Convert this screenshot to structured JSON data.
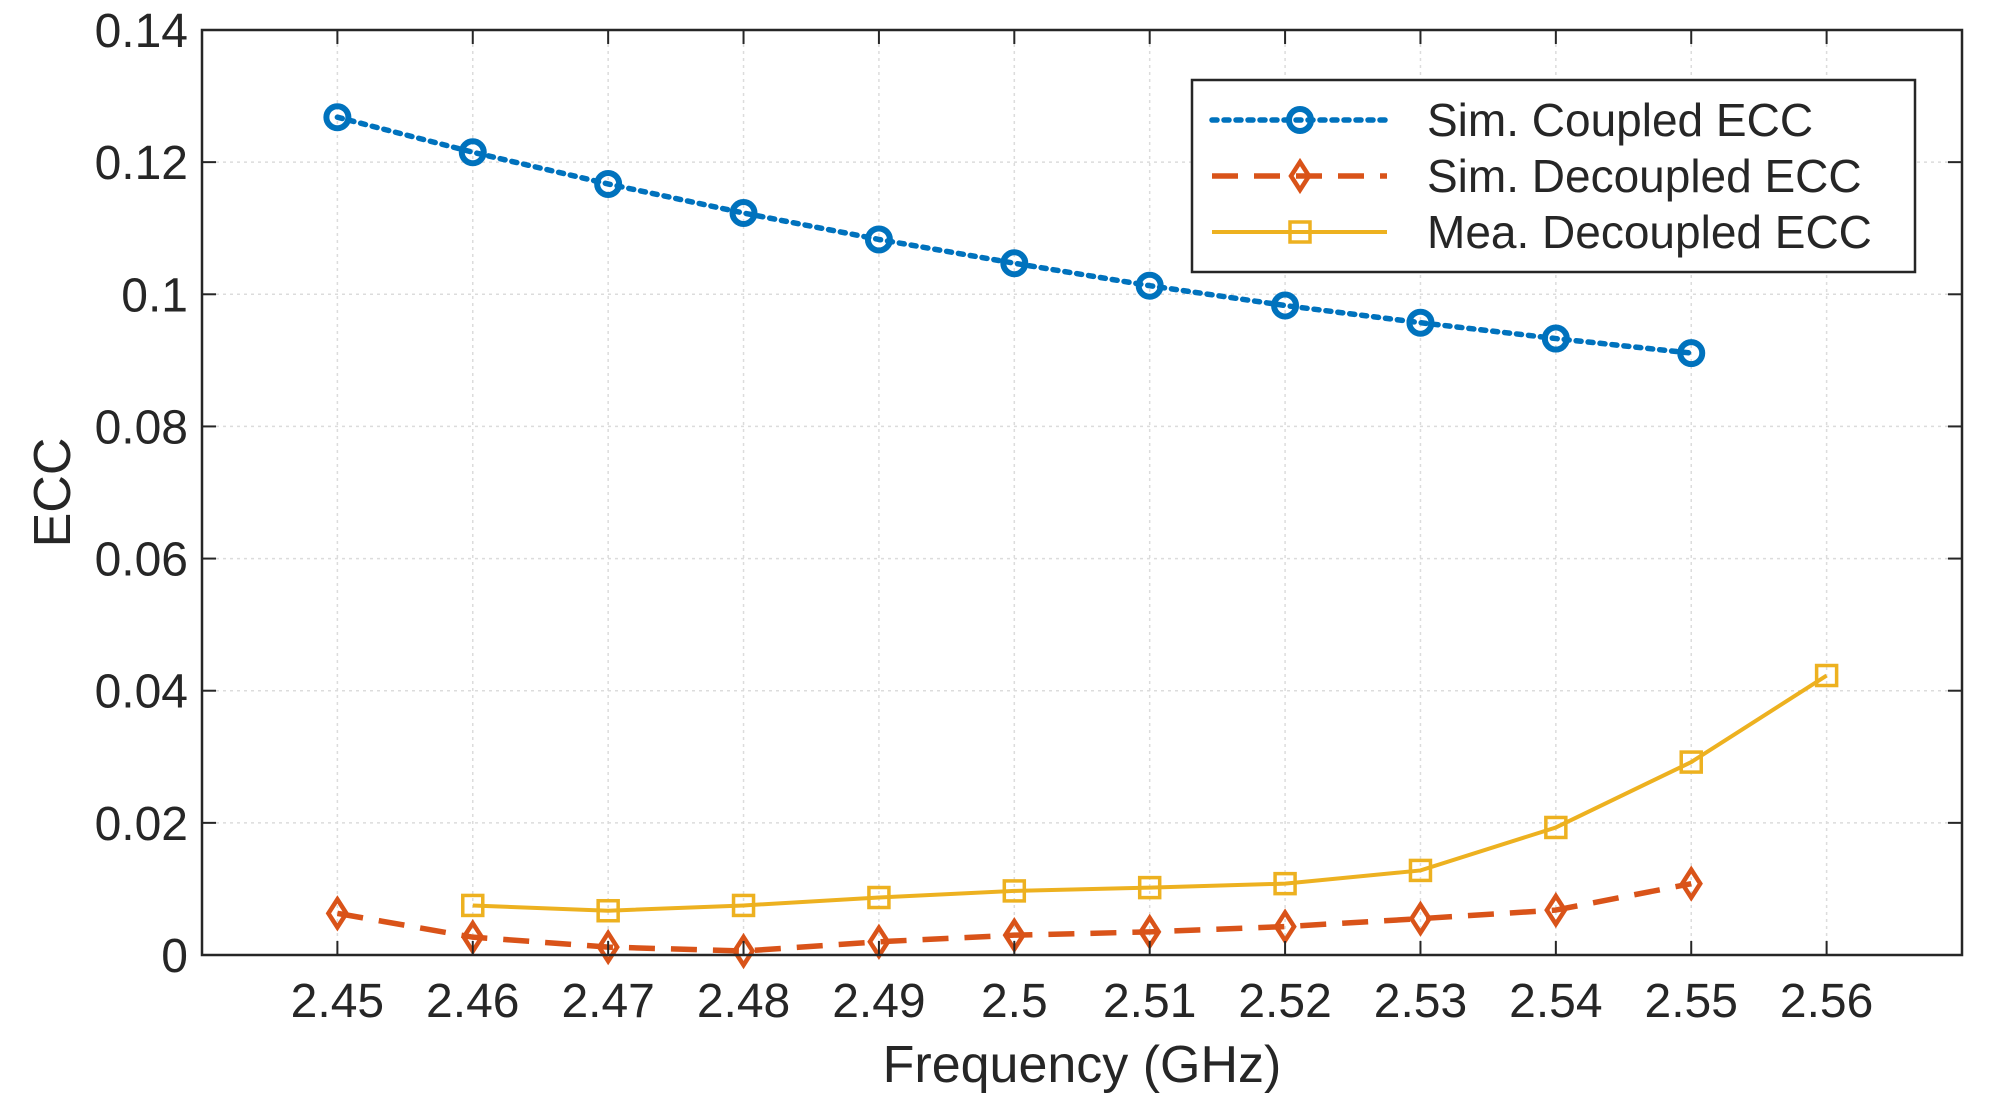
{
  "chart_data": {
    "type": "line",
    "xlabel": "Frequency (GHz)",
    "ylabel": "ECC",
    "xlim": [
      2.44,
      2.57
    ],
    "ylim": [
      0,
      0.14
    ],
    "xticks": [
      2.45,
      2.46,
      2.47,
      2.48,
      2.49,
      2.5,
      2.51,
      2.52,
      2.53,
      2.54,
      2.55,
      2.56
    ],
    "xtick_labels": [
      "2.45",
      "2.46",
      "2.47",
      "2.48",
      "2.49",
      "2.5",
      "2.51",
      "2.52",
      "2.53",
      "2.54",
      "2.55",
      "2.56"
    ],
    "yticks": [
      0,
      0.02,
      0.04,
      0.06,
      0.08,
      0.1,
      0.12,
      0.14
    ],
    "ytick_labels": [
      "0",
      "0.02",
      "0.04",
      "0.06",
      "0.08",
      "0.1",
      "0.12",
      "0.14"
    ],
    "grid": true,
    "legend_position": "top-right",
    "series": [
      {
        "name": "Sim. Coupled ECC",
        "color": "#0072BD",
        "line_style": "dotted",
        "marker": "circle",
        "x": [
          2.45,
          2.46,
          2.47,
          2.48,
          2.49,
          2.5,
          2.51,
          2.52,
          2.53,
          2.54,
          2.55
        ],
        "values": [
          0.1268,
          0.1215,
          0.1167,
          0.1123,
          0.1083,
          0.1047,
          0.1013,
          0.0983,
          0.0957,
          0.0933,
          0.0911
        ]
      },
      {
        "name": "Sim. Decoupled ECC",
        "color": "#D95319",
        "line_style": "dashed",
        "marker": "diamond",
        "x": [
          2.45,
          2.46,
          2.47,
          2.48,
          2.49,
          2.5,
          2.51,
          2.52,
          2.53,
          2.54,
          2.55
        ],
        "values": [
          0.0063,
          0.0027,
          0.0012,
          0.0006,
          0.002,
          0.003,
          0.0035,
          0.0043,
          0.0055,
          0.0068,
          0.0108
        ]
      },
      {
        "name": "Mea. Decoupled ECC",
        "color": "#EDB120",
        "line_style": "solid",
        "marker": "square",
        "x": [
          2.46,
          2.47,
          2.48,
          2.49,
          2.5,
          2.51,
          2.52,
          2.53,
          2.54,
          2.55,
          2.56
        ],
        "values": [
          0.0075,
          0.0067,
          0.0075,
          0.0087,
          0.0097,
          0.0102,
          0.0108,
          0.0128,
          0.0193,
          0.0292,
          0.0423
        ]
      }
    ]
  }
}
